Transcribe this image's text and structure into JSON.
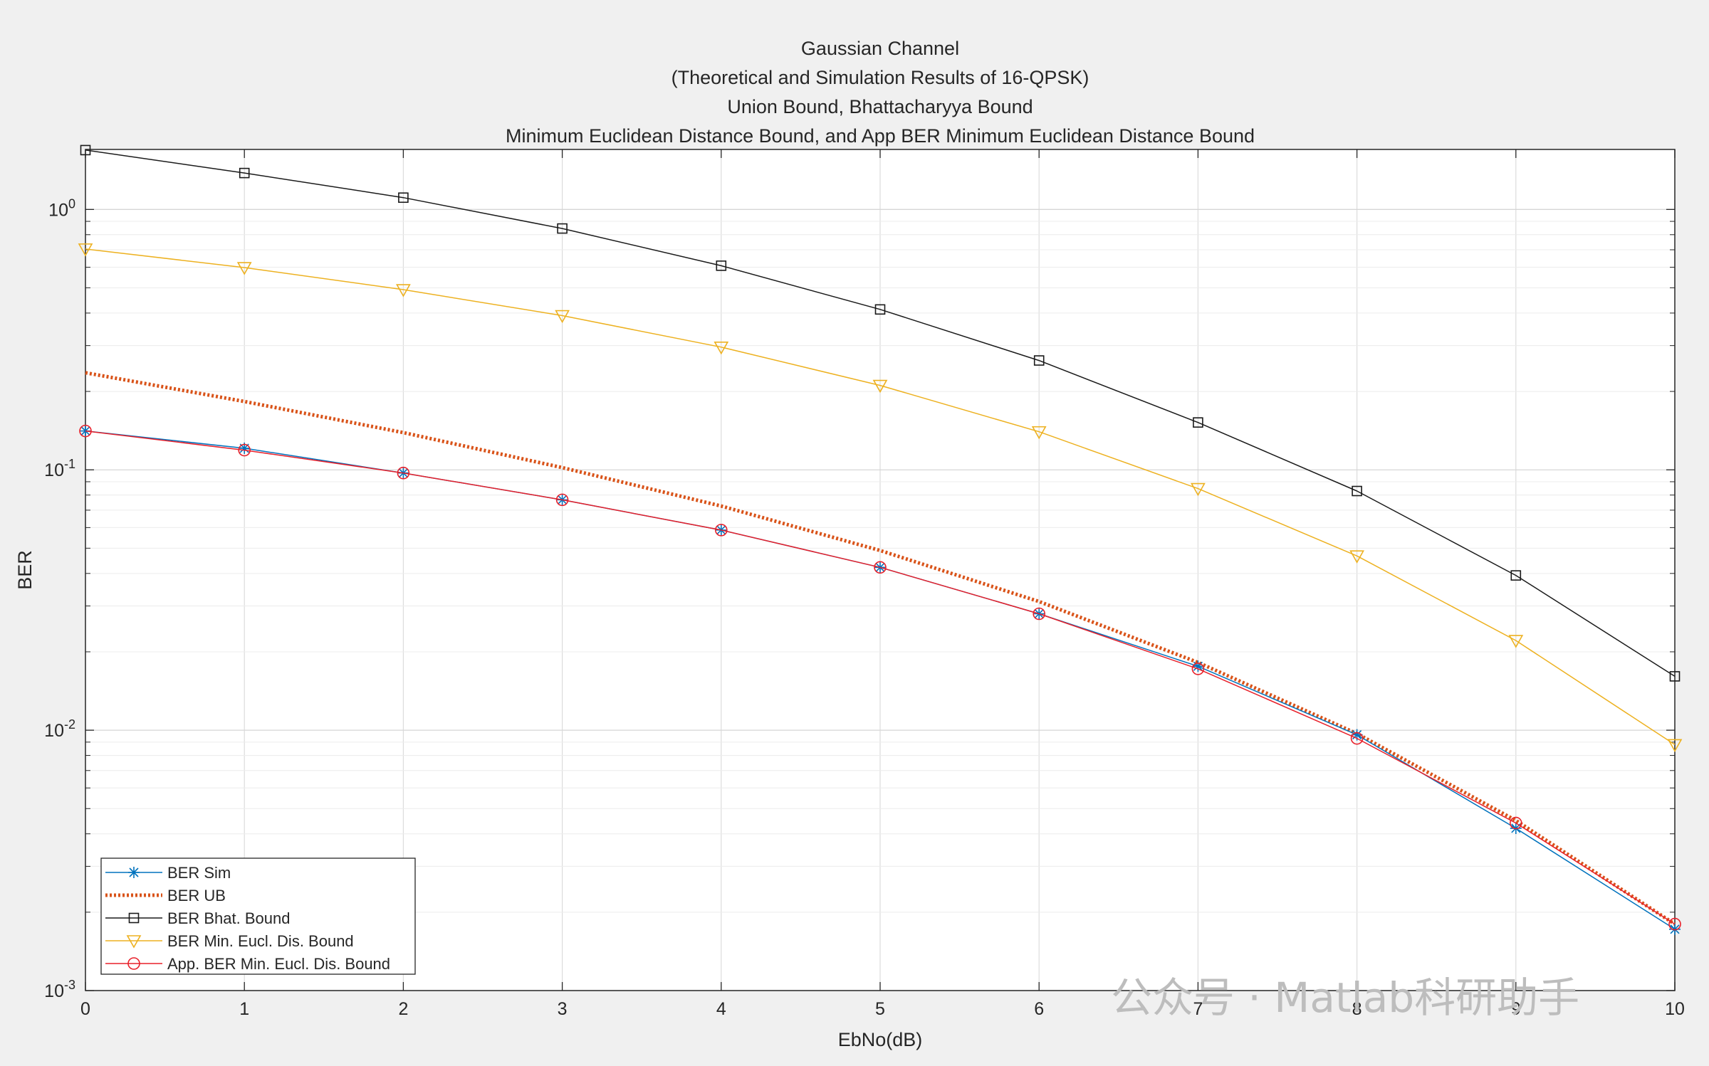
{
  "chart_data": {
    "type": "line",
    "title_lines": [
      "Gaussian Channel",
      "(Theoretical and Simulation Results of 16-QPSK)",
      "Union Bound, Bhattacharyya Bound",
      "Minimum Euclidean Distance Bound, and App BER Minimum Euclidean Distance Bound"
    ],
    "xlabel": "EbNo(dB)",
    "ylabel": "BER",
    "xlim": [
      0,
      10
    ],
    "ylim": [
      0.001,
      1.7
    ],
    "yscale": "log",
    "grid": true,
    "xticks": [
      "0",
      "1",
      "2",
      "3",
      "4",
      "5",
      "6",
      "7",
      "8",
      "9",
      "10"
    ],
    "yticks": [
      {
        "value": 0.001,
        "base": "10",
        "exp": "-3"
      },
      {
        "value": 0.01,
        "base": "10",
        "exp": "-2"
      },
      {
        "value": 0.1,
        "base": "10",
        "exp": "-1"
      },
      {
        "value": 1,
        "base": "10",
        "exp": "0"
      }
    ],
    "x": [
      0,
      1,
      2,
      3,
      4,
      5,
      6,
      7,
      8,
      9,
      10
    ],
    "legend_position": "bottom-left",
    "series": [
      {
        "name": "BER Sim",
        "color": "#0072bd",
        "marker": "asterisk",
        "dash": "solid",
        "width": 1.5,
        "values": [
          0.141,
          0.121,
          0.0972,
          0.0767,
          0.0587,
          0.0422,
          0.028,
          0.0176,
          0.0096,
          0.0042,
          0.00172
        ]
      },
      {
        "name": "BER UB",
        "color": "#d95319",
        "marker": "none",
        "dash": "dotted",
        "width": 5,
        "values": [
          0.236,
          0.183,
          0.139,
          0.102,
          0.0726,
          0.049,
          0.0312,
          0.0182,
          0.0097,
          0.0045,
          0.0018
        ]
      },
      {
        "name": "BER Bhat. Bound",
        "color": "#1a1a1a",
        "marker": "square",
        "dash": "solid",
        "width": 1.5,
        "values": [
          1.69,
          1.38,
          1.11,
          0.845,
          0.608,
          0.413,
          0.263,
          0.152,
          0.0829,
          0.0393,
          0.0161
        ]
      },
      {
        "name": "BER Min. Eucl. Dis. Bound",
        "color": "#edb120",
        "marker": "triangle-down",
        "dash": "solid",
        "width": 1.5,
        "values": [
          0.705,
          0.598,
          0.492,
          0.391,
          0.296,
          0.211,
          0.14,
          0.0847,
          0.0467,
          0.0221,
          0.0088
        ]
      },
      {
        "name": "App. BER Min. Eucl. Dis. Bound",
        "color": "#e8202a",
        "marker": "circle",
        "dash": "solid",
        "width": 1.5,
        "values": [
          0.141,
          0.119,
          0.0972,
          0.0767,
          0.0587,
          0.0422,
          0.028,
          0.0172,
          0.0093,
          0.0044,
          0.0018
        ]
      }
    ],
    "watermark": "公众号 · Matlab科研助手"
  }
}
